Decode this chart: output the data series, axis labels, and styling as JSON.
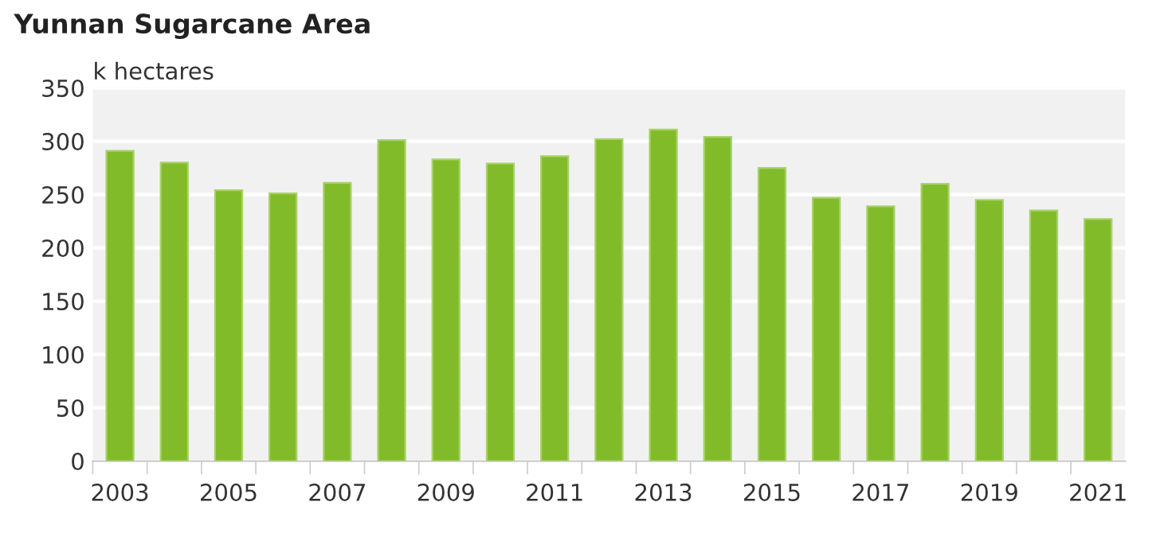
{
  "chart_data": {
    "type": "bar",
    "title": "Yunnan Sugarcane Area",
    "ylabel": "k hectares",
    "categories": [
      "2003",
      null,
      "2005",
      null,
      "2007",
      null,
      "2009",
      null,
      "2011",
      null,
      "2013",
      null,
      "2015",
      null,
      "2017",
      null,
      "2019",
      null,
      "2021"
    ],
    "values": [
      291,
      280,
      254,
      251,
      261,
      301,
      283,
      279,
      286,
      302,
      311,
      304,
      275,
      247,
      239,
      260,
      245,
      235,
      227
    ],
    "color": "#82bb29",
    "ylim": [
      0,
      350
    ],
    "yticks": [
      0,
      50,
      100,
      150,
      200,
      250,
      300,
      350
    ],
    "grid": "y"
  }
}
